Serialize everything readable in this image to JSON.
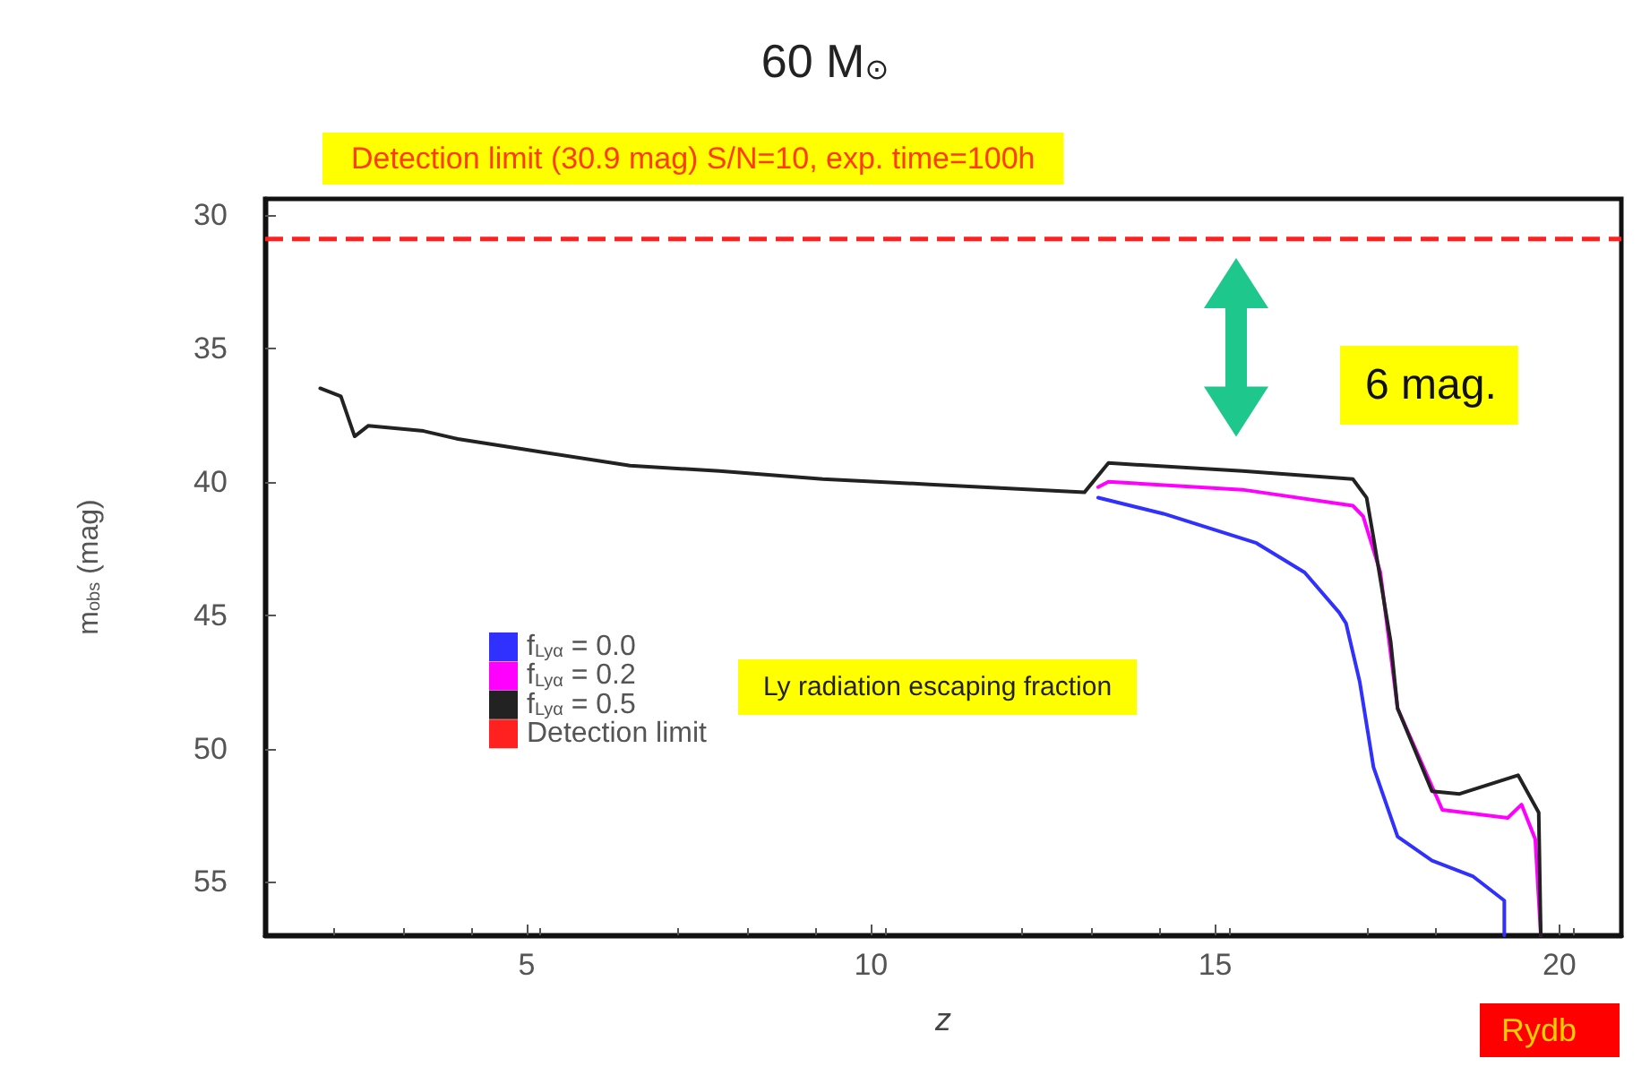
{
  "chart_data": {
    "type": "line",
    "title": "60 M$_{⊙}$",
    "xlabel": "z",
    "ylabel": "m$_{obs}$ (mag)",
    "xlim": [
      1.2,
      20.9
    ],
    "xticks": [
      5,
      10,
      15,
      20
    ],
    "ylim": [
      57,
      29.4
    ],
    "yticks": [
      30,
      35,
      40,
      45,
      50,
      55
    ],
    "series": [
      {
        "name": "f$_{Lyα}$ = 0.0",
        "color": "#3030ff",
        "x": [
          13.3,
          14.25,
          15.6,
          16.3,
          16.8,
          16.9,
          17.1,
          17.3,
          17.65,
          18.15,
          18.75,
          19.2,
          19.2
        ],
        "values": [
          40.6,
          41.2,
          42.3,
          43.4,
          44.9,
          45.3,
          47.5,
          50.7,
          53.3,
          54.2,
          54.8,
          55.7,
          57
        ]
      },
      {
        "name": "f$_{Lyα}$ = 0.2",
        "color": "#ff00ff",
        "x": [
          13.3,
          13.45,
          15.4,
          17.0,
          17.15,
          17.4,
          17.65,
          18.3,
          19.25,
          19.45,
          19.65,
          19.73
        ],
        "values": [
          40.2,
          40.0,
          40.3,
          40.9,
          41.3,
          43.4,
          48.5,
          52.3,
          52.6,
          52.1,
          53.4,
          57
        ]
      },
      {
        "name": "f$_{Lyα}$ = 0.5",
        "color": "#222222",
        "x": [
          2.0,
          2.3,
          2.5,
          2.7,
          3.5,
          4.0,
          5.25,
          6.5,
          7.8,
          9.3,
          10.85,
          13.1,
          13.45,
          15.4,
          17.0,
          17.2,
          17.3,
          17.55,
          17.65,
          18.15,
          18.55,
          19.4,
          19.7,
          19.73
        ],
        "values": [
          36.5,
          36.8,
          38.3,
          37.9,
          38.1,
          38.4,
          38.9,
          39.4,
          39.6,
          39.9,
          40.1,
          40.4,
          39.3,
          39.6,
          39.9,
          40.6,
          42.1,
          46.0,
          48.5,
          51.6,
          51.7,
          51.0,
          52.4,
          57
        ]
      }
    ],
    "ref_lines": [
      {
        "axis": "y",
        "value": 30.9,
        "label": "Detection limit",
        "color": "#ff2020",
        "line_style": "dashed"
      }
    ],
    "annotations": [
      "Detection limit (30.9 mag) S/N=10, exp. time=100h",
      "6 mag.",
      "Ly radiation escaping fraction",
      "Rydb"
    ],
    "legend": "left",
    "grid": false,
    "marker": "none",
    "line_style": "solid"
  }
}
